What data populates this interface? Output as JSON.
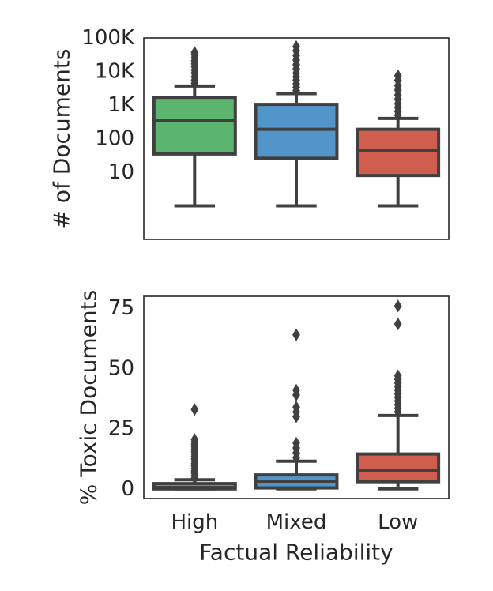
{
  "chart_data": [
    {
      "type": "box",
      "ylabel": "# of Documents",
      "yscale": "log",
      "ylim": [
        0.1,
        100000
      ],
      "ytick_values": [
        10,
        100,
        1000,
        10000,
        100000
      ],
      "ytick_labels": [
        "10",
        "100",
        "1K",
        "10K",
        "100K"
      ],
      "categories": [
        "High",
        "Mixed",
        "Low"
      ],
      "colors": [
        "#5cb56f",
        "#5295c9",
        "#cf5e4e"
      ],
      "boxes": [
        {
          "name": "High",
          "whisker_low": 1,
          "q1": 35,
          "median": 350,
          "q3": 1700,
          "whisker_high": 3700,
          "outliers": [
            4500,
            5500,
            7000,
            9000,
            11000,
            14000,
            17000,
            21000,
            26000,
            32000,
            37000
          ]
        },
        {
          "name": "Mixed",
          "whisker_low": 1,
          "q1": 26,
          "median": 190,
          "q3": 1050,
          "whisker_high": 2200,
          "outliers": [
            2700,
            3400,
            4300,
            5500,
            7000,
            9000,
            12000,
            16000,
            22000,
            30000,
            42000,
            55000
          ]
        },
        {
          "name": "Low",
          "whisker_low": 1,
          "q1": 8,
          "median": 45,
          "q3": 190,
          "whisker_high": 400,
          "outliers": [
            500,
            650,
            850,
            1100,
            1500,
            2000,
            2800,
            3800,
            5500,
            7500
          ]
        }
      ]
    },
    {
      "type": "box",
      "ylabel": "% Toxic Documents",
      "xlabel": "Factual Reliability",
      "ylim": [
        -4,
        80
      ],
      "ytick_values": [
        0,
        25,
        50,
        75
      ],
      "ytick_labels": [
        "0",
        "25",
        "50",
        "75"
      ],
      "categories": [
        "High",
        "Mixed",
        "Low"
      ],
      "colors": [
        "#5cb56f",
        "#5295c9",
        "#cf5e4e"
      ],
      "boxes": [
        {
          "name": "High",
          "whisker_low": 0,
          "q1": 0,
          "median": 0.6,
          "q3": 2.2,
          "whisker_high": 3.8,
          "outliers": [
            4.5,
            5.5,
            6.5,
            7.5,
            8.5,
            9.5,
            10.5,
            11.5,
            12.5,
            13.5,
            14.5,
            15.5,
            16.5,
            17.5,
            18.5,
            19.5,
            20.5,
            33
          ]
        },
        {
          "name": "Mixed",
          "whisker_low": 0,
          "q1": 0.4,
          "median": 3.2,
          "q3": 5.8,
          "whisker_high": 11.5,
          "outliers": [
            13,
            15,
            17,
            19,
            30,
            32,
            34,
            39,
            41,
            64
          ]
        },
        {
          "name": "Low",
          "whisker_low": 0,
          "q1": 3,
          "median": 7.5,
          "q3": 14.5,
          "whisker_high": 30.5,
          "outliers": [
            32,
            33.5,
            35,
            36.5,
            38,
            39.5,
            41,
            42.5,
            44,
            45.5,
            47,
            68.5,
            76
          ]
        }
      ]
    }
  ]
}
